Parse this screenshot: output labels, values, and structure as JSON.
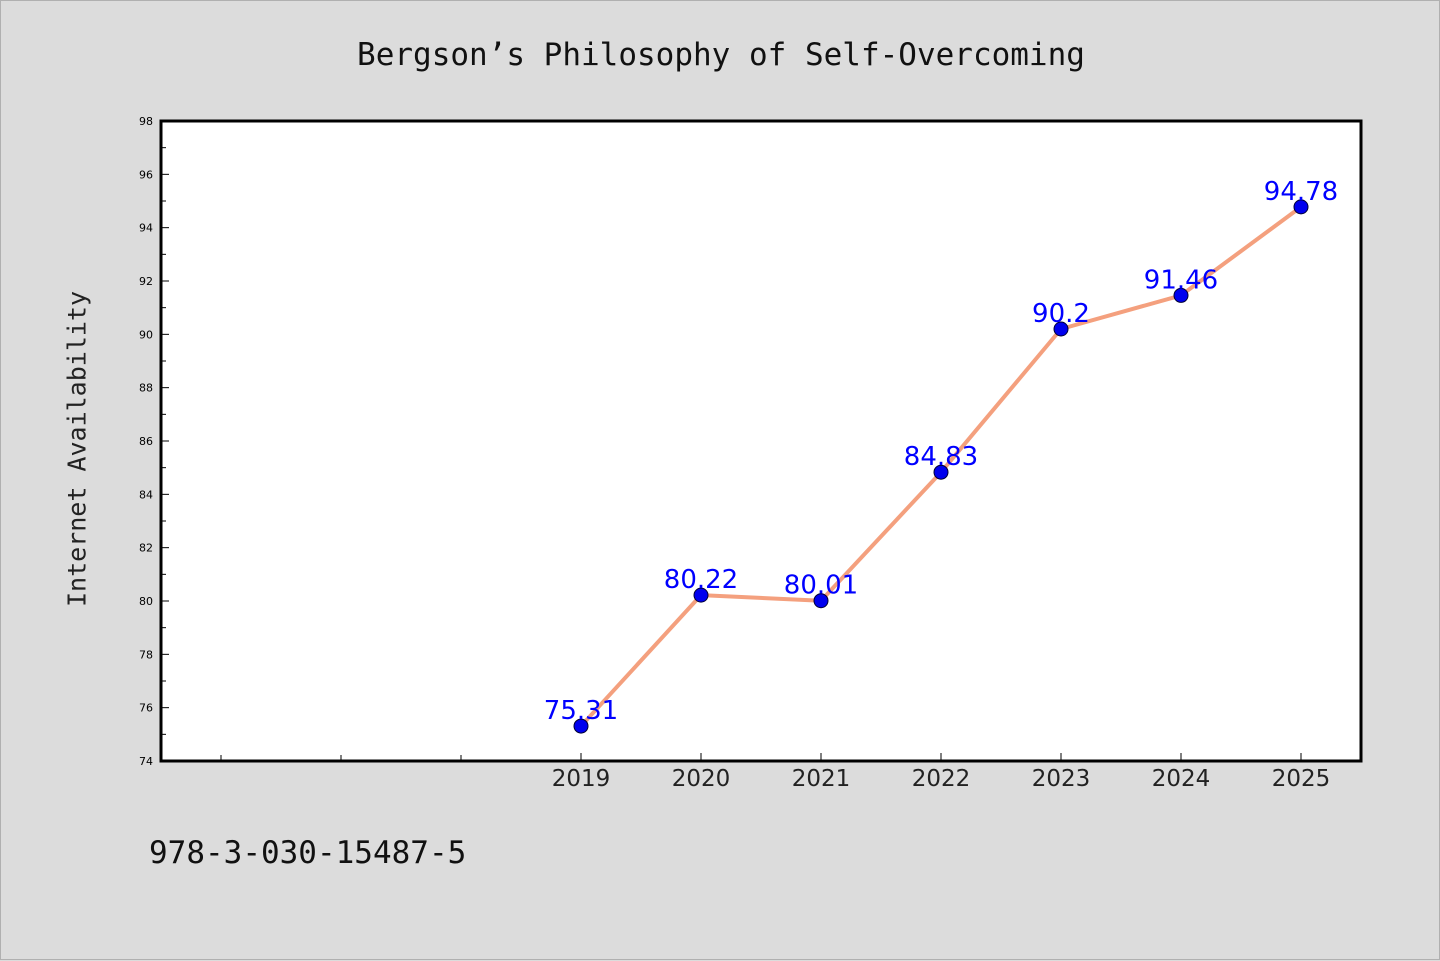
{
  "chart_data": {
    "type": "line",
    "title": "Bergson’s Philosophy of Self-Overcoming",
    "ylabel": "Internet Availability",
    "xlabel": "",
    "x": [
      "2019",
      "2020",
      "2021",
      "2022",
      "2023",
      "2024",
      "2025"
    ],
    "series": [
      {
        "values": [
          75.31,
          80.22,
          80.01,
          84.83,
          90.2,
          91.46,
          94.78
        ],
        "data_labels": [
          "75.31",
          "80.22",
          "80.01",
          "84.83",
          "90.2",
          "91.46",
          "94.78"
        ]
      }
    ],
    "ylim": [
      74,
      98
    ],
    "yticks": [
      "74",
      "76",
      "78",
      "80",
      "82",
      "84",
      "86",
      "88",
      "90",
      "92",
      "94",
      "96",
      "98"
    ],
    "grid": false,
    "legend": "none",
    "colors": {
      "line": "#f4a07e",
      "marker": "#0000ee",
      "label": "#0000ff",
      "plot_bg": "#ffffff",
      "page_bg": "#dcdcdc"
    }
  },
  "footer": {
    "isbn": "978-3-030-15487-5"
  }
}
